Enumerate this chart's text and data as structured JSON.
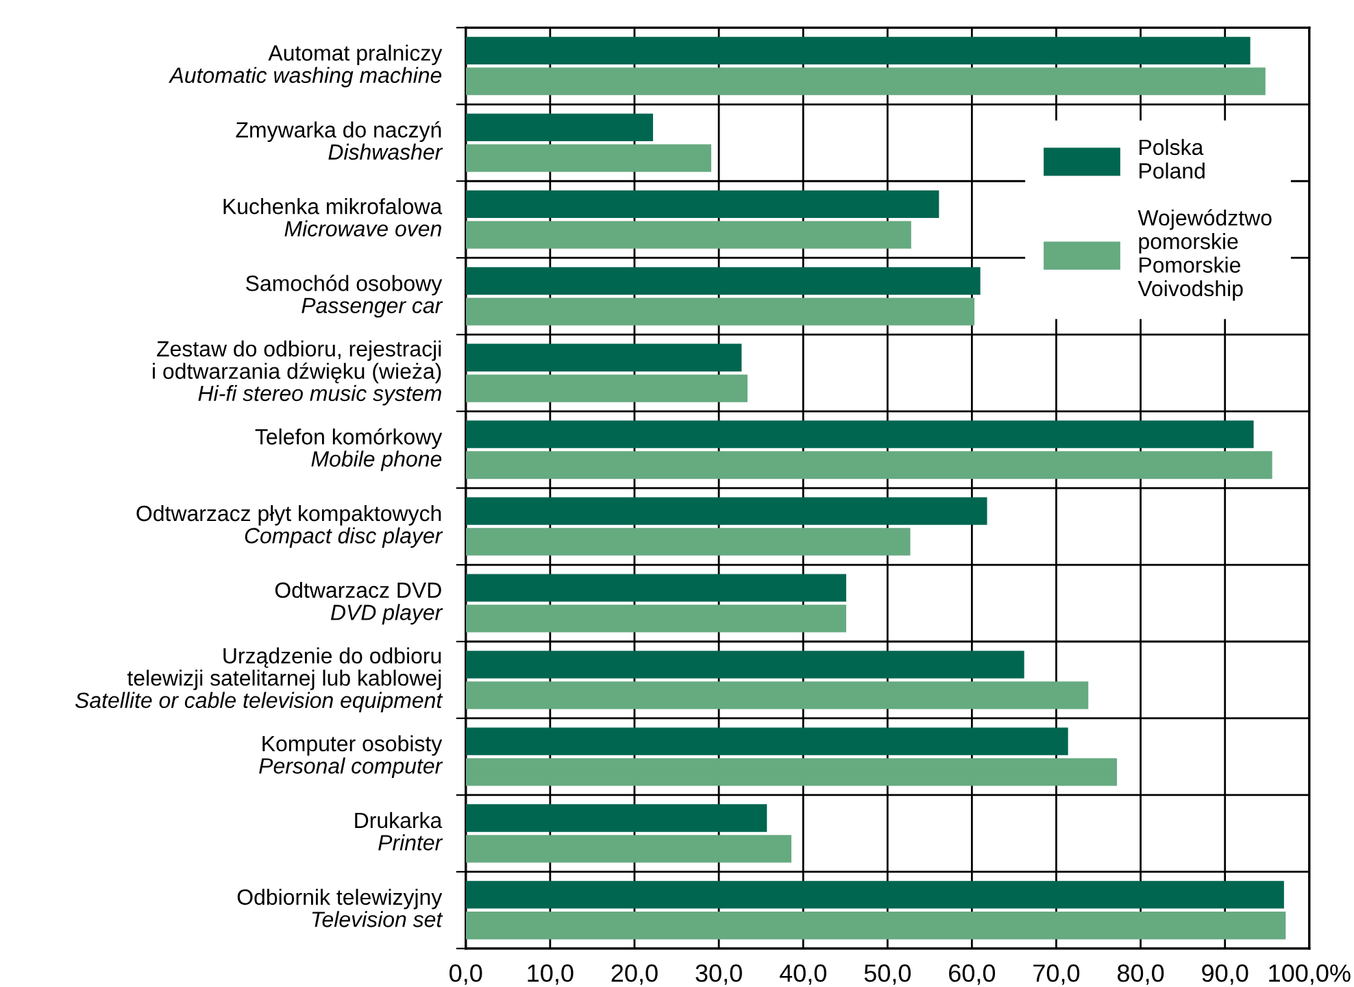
{
  "chart_data": {
    "type": "bar",
    "orientation": "horizontal",
    "categories": [
      "Automat pralniczy\nAutomatic washing machine",
      "Zmywarka do naczyń\nDishwasher",
      "Kuchenka mikrofalowa\nMicrowave oven",
      "Samochód osobowy\nPassenger car",
      "Zestaw do odbioru, rejestracji\ni odtwarzania dźwięku (wieża)\nHi-fi stereo music system",
      "Telefon komórkowy\nMobile phone",
      "Odtwarzacz płyt kompaktowych\nCompact disc player",
      "Odtwarzacz DVD\nDVD player",
      "Urządzenie do odbioru\ntelewizji satelitarnej lub kablowej\nSatellite or cable television equipment",
      "Komputer osobisty\nPersonal computer",
      "Drukarka\nPrinter",
      "Odbiornik telewizyjny\nTelevision set"
    ],
    "series": [
      {
        "name": "Polska\nPoland",
        "color": "#006650",
        "values": [
          93.0,
          22.2,
          56.1,
          61.0,
          32.7,
          93.4,
          61.8,
          45.1,
          66.2,
          71.4,
          35.7,
          97.0
        ]
      },
      {
        "name": "Województwo\npomorskie\nPomorskie\nVoivodship",
        "color": "#66aa80",
        "values": [
          94.8,
          29.1,
          52.8,
          60.3,
          33.4,
          95.6,
          52.7,
          45.1,
          73.8,
          77.2,
          38.6,
          97.2
        ]
      }
    ],
    "xlim": [
      0,
      100
    ],
    "xticks": [
      {
        "value": 0,
        "label": "0,0"
      },
      {
        "value": 10,
        "label": "10,0"
      },
      {
        "value": 20,
        "label": "20,0"
      },
      {
        "value": 30,
        "label": "30,0"
      },
      {
        "value": 40,
        "label": "40,0"
      },
      {
        "value": 50,
        "label": "50,0"
      },
      {
        "value": 60,
        "label": "60,0"
      },
      {
        "value": 70,
        "label": "70,0"
      },
      {
        "value": 80,
        "label": "80,0"
      },
      {
        "value": 90,
        "label": "90,0"
      },
      {
        "value": 100,
        "label": "100,0%"
      }
    ],
    "grid": true,
    "legend": "top right"
  }
}
